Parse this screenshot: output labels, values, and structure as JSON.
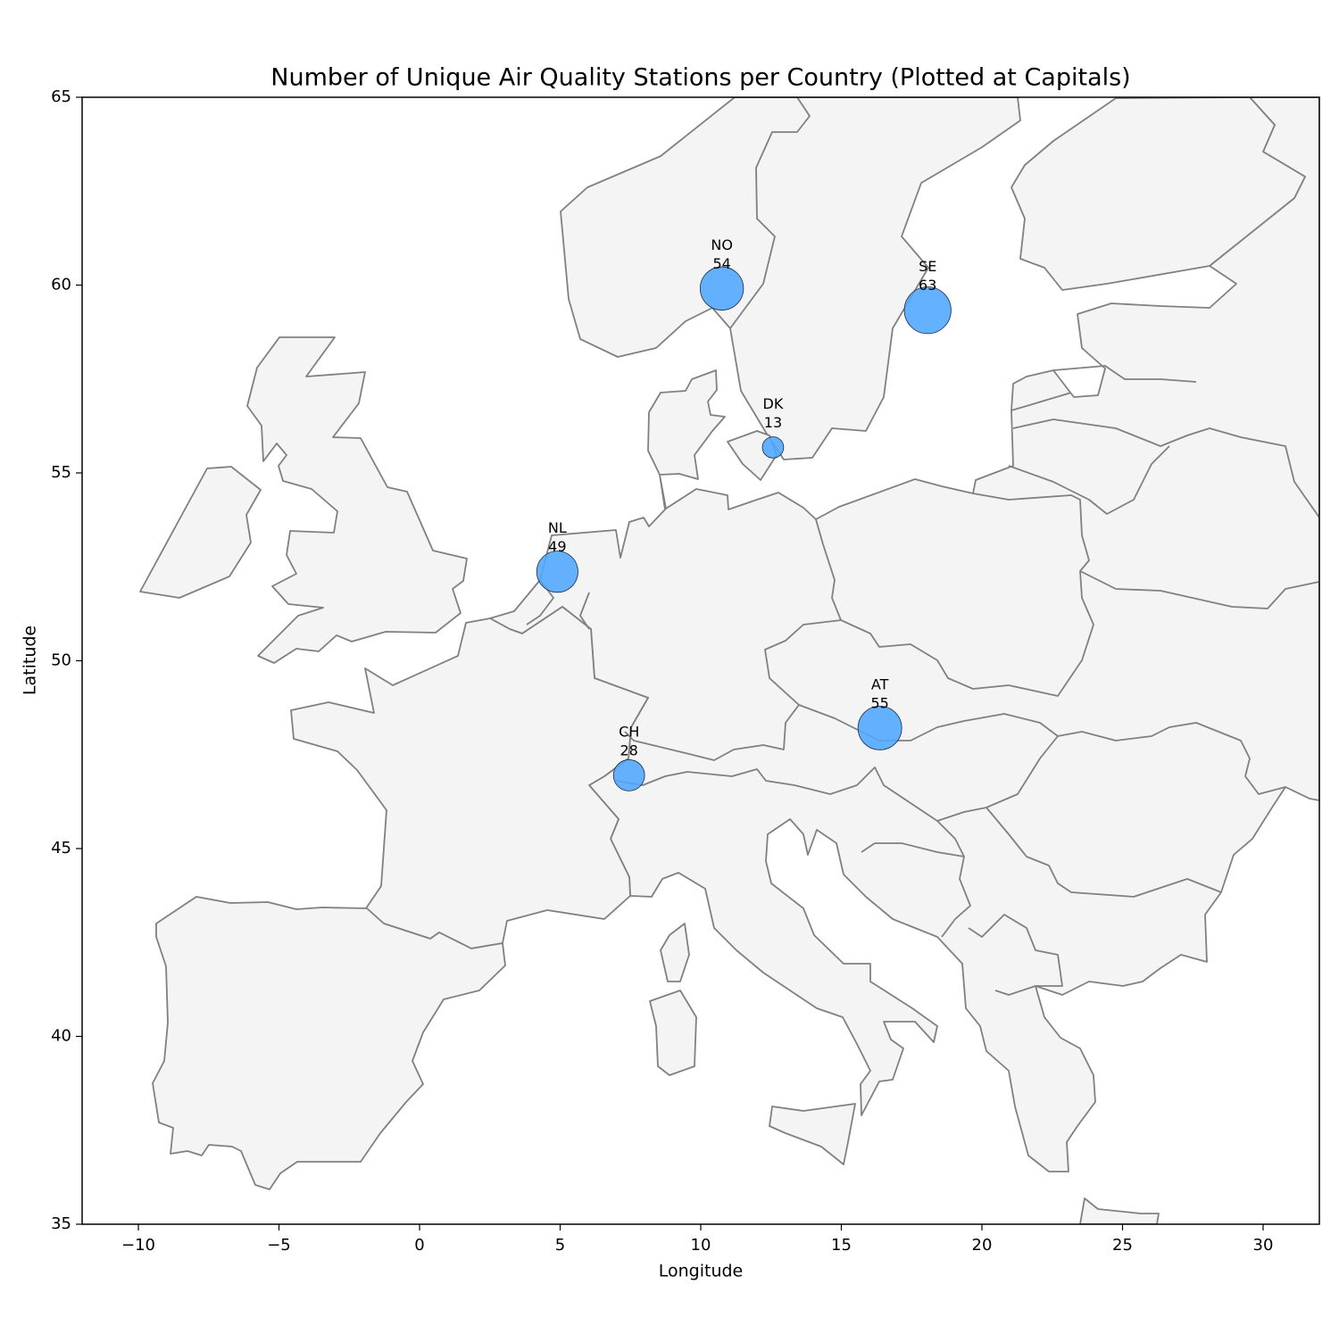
{
  "chart_data": {
    "type": "scatter",
    "title": "Number of Unique Air Quality Stations per Country (Plotted at Capitals)",
    "x_label": "Longitude",
    "y_label": "Latitude",
    "labels": [
      "NO",
      "SE",
      "DK",
      "NL",
      "CH",
      "AT"
    ],
    "x": [
      10.75,
      18.07,
      12.57,
      4.9,
      7.45,
      16.37
    ],
    "y": [
      59.91,
      59.33,
      55.68,
      52.37,
      46.95,
      48.21
    ],
    "sizes": [
      54,
      63,
      13,
      49,
      28,
      55
    ],
    "color": "#4da6ff",
    "xlim": [
      -12,
      32
    ],
    "xticks": [
      {
        "value": -10,
        "label": "−10"
      },
      {
        "value": -5,
        "label": "−5"
      },
      0,
      5,
      10,
      15,
      20,
      25,
      30
    ],
    "ylim": [
      35,
      65
    ],
    "yticks": [
      35,
      40,
      45,
      50,
      55,
      60,
      65
    ]
  }
}
